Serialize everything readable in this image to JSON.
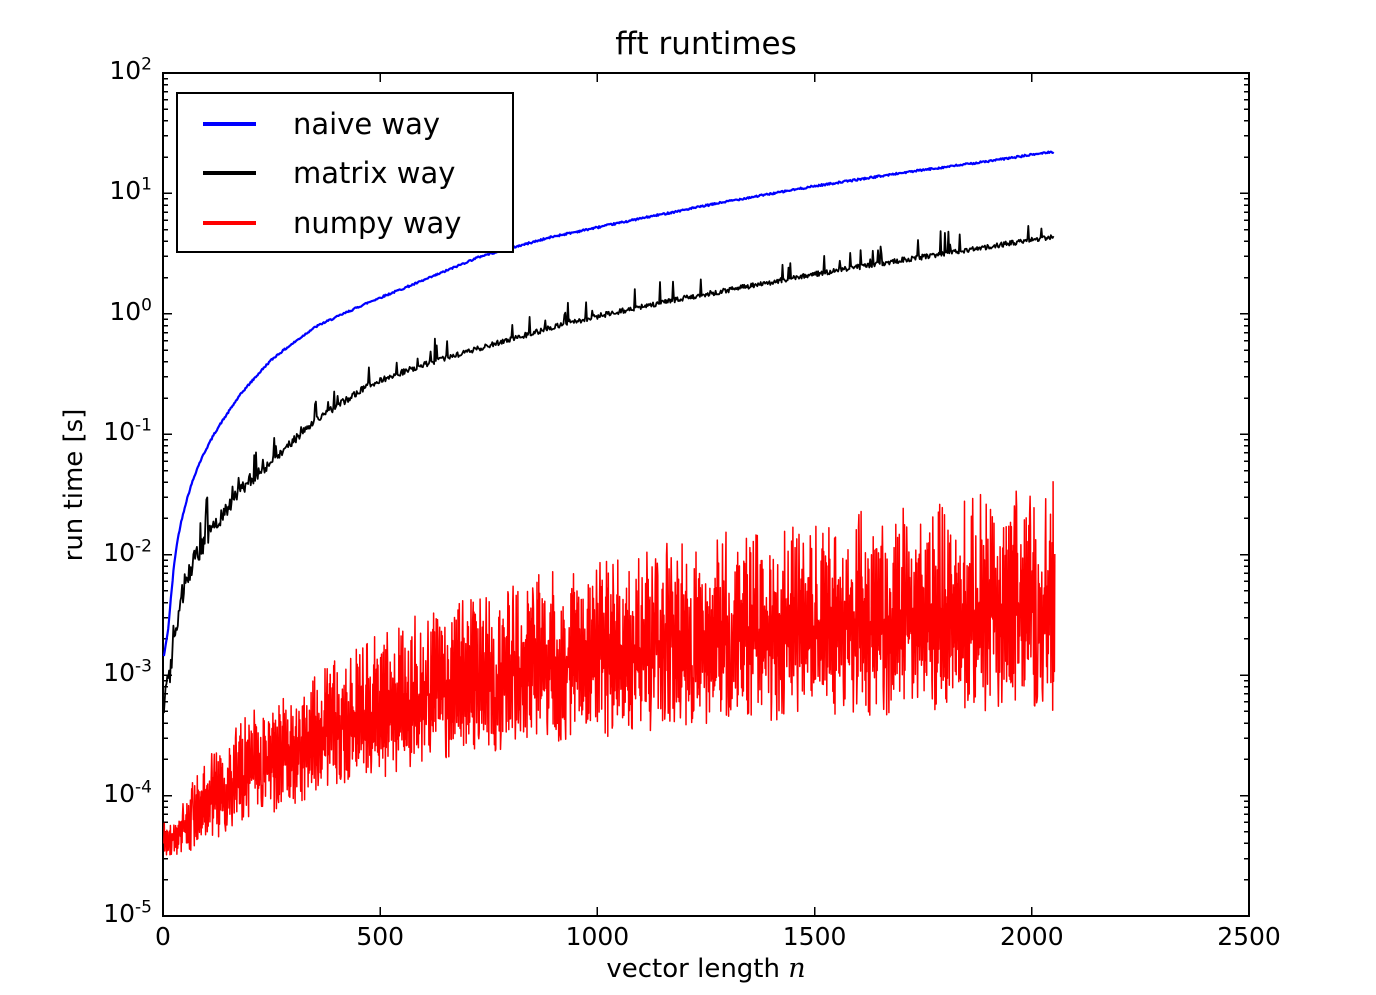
{
  "title": "fft runtimes",
  "labels": {
    "ylabel": "run time [s]",
    "xlabel_text": "vector length",
    "xlabel_math": "n"
  },
  "legend": {
    "position": "upper left"
  },
  "chart_data": {
    "type": "line",
    "title": "fft runtimes",
    "xlabel": "vector length n",
    "ylabel": "run time [s]",
    "grid": false,
    "legend_position": "upper left",
    "x_range": [
      0,
      2500
    ],
    "y_scale": "log",
    "y_exp_range": [
      -5,
      2
    ],
    "x_ticks": [
      0,
      500,
      1000,
      1500,
      2000,
      2500
    ],
    "x_tick_labels": [
      "0",
      "500",
      "1000",
      "1500",
      "2000",
      "2500"
    ],
    "y_tick_exponents": [
      "2",
      "1",
      "0",
      "-1",
      "-2",
      "-3",
      "-4",
      "-5"
    ],
    "y_tick_base": "10",
    "n_start": 2,
    "n_end": 2050,
    "series": [
      {
        "name": "naive way",
        "color": "#0000ff",
        "kind": "smooth",
        "linewidth": 2.2,
        "noise_rel": 0.018,
        "anchors": [
          [
            2,
            0.00035
          ],
          [
            5,
            0.0006
          ],
          [
            9,
            0.0015
          ],
          [
            14,
            0.0035
          ],
          [
            20,
            0.007
          ],
          [
            30,
            0.012
          ],
          [
            50,
            0.026
          ],
          [
            80,
            0.055
          ],
          [
            120,
            0.105
          ],
          [
            180,
            0.22
          ],
          [
            250,
            0.42
          ],
          [
            350,
            0.78
          ],
          [
            476,
            1.26
          ],
          [
            600,
            1.9
          ],
          [
            730,
            3.0
          ],
          [
            900,
            4.4
          ],
          [
            1100,
            6.2
          ],
          [
            1300,
            8.6
          ],
          [
            1500,
            11.5
          ],
          [
            1700,
            14.8
          ],
          [
            1900,
            18.5
          ],
          [
            2049,
            22.3
          ]
        ]
      },
      {
        "name": "matrix way",
        "color": "#000000",
        "kind": "noisy",
        "linewidth": 1.8,
        "noise_rel": 0.05,
        "spike_at": 100,
        "anchors": [
          [
            2,
            0.00016
          ],
          [
            5,
            0.0003
          ],
          [
            10,
            0.0007
          ],
          [
            20,
            0.002
          ],
          [
            30,
            0.0032
          ],
          [
            50,
            0.0055
          ],
          [
            80,
            0.0105
          ],
          [
            120,
            0.018
          ],
          [
            180,
            0.035
          ],
          [
            250,
            0.06
          ],
          [
            350,
            0.13
          ],
          [
            476,
            0.26
          ],
          [
            600,
            0.38
          ],
          [
            753,
            0.55
          ],
          [
            900,
            0.78
          ],
          [
            1013,
            0.98
          ],
          [
            1200,
            1.35
          ],
          [
            1350,
            1.7
          ],
          [
            1489,
            2.1
          ],
          [
            1700,
            2.8
          ],
          [
            1900,
            3.6
          ],
          [
            2049,
            4.4
          ]
        ]
      },
      {
        "name": "numpy way",
        "color": "#ff0000",
        "kind": "band",
        "linewidth": 1.5,
        "lower_envelope": [
          [
            2,
            4e-05
          ],
          [
            5,
            3.2e-05
          ],
          [
            30,
            3.2e-05
          ],
          [
            80,
            3.6e-05
          ],
          [
            150,
            5e-05
          ],
          [
            250,
            7e-05
          ],
          [
            400,
            0.00011
          ],
          [
            600,
            0.00017
          ],
          [
            800,
            0.00023
          ],
          [
            1000,
            0.00029
          ],
          [
            1300,
            0.00037
          ],
          [
            1600,
            0.00042
          ],
          [
            1900,
            0.00046
          ],
          [
            2053,
            0.00048
          ]
        ],
        "upper_envelope": [
          [
            2,
            0.00012
          ],
          [
            5,
            5.5e-05
          ],
          [
            30,
            6.5e-05
          ],
          [
            80,
            0.00017
          ],
          [
            150,
            0.00036
          ],
          [
            250,
            0.00065
          ],
          [
            400,
            0.0015
          ],
          [
            600,
            0.0036
          ],
          [
            800,
            0.006
          ],
          [
            1000,
            0.0095
          ],
          [
            1300,
            0.016
          ],
          [
            1600,
            0.023
          ],
          [
            1900,
            0.033
          ],
          [
            2053,
            0.042
          ]
        ]
      }
    ]
  }
}
